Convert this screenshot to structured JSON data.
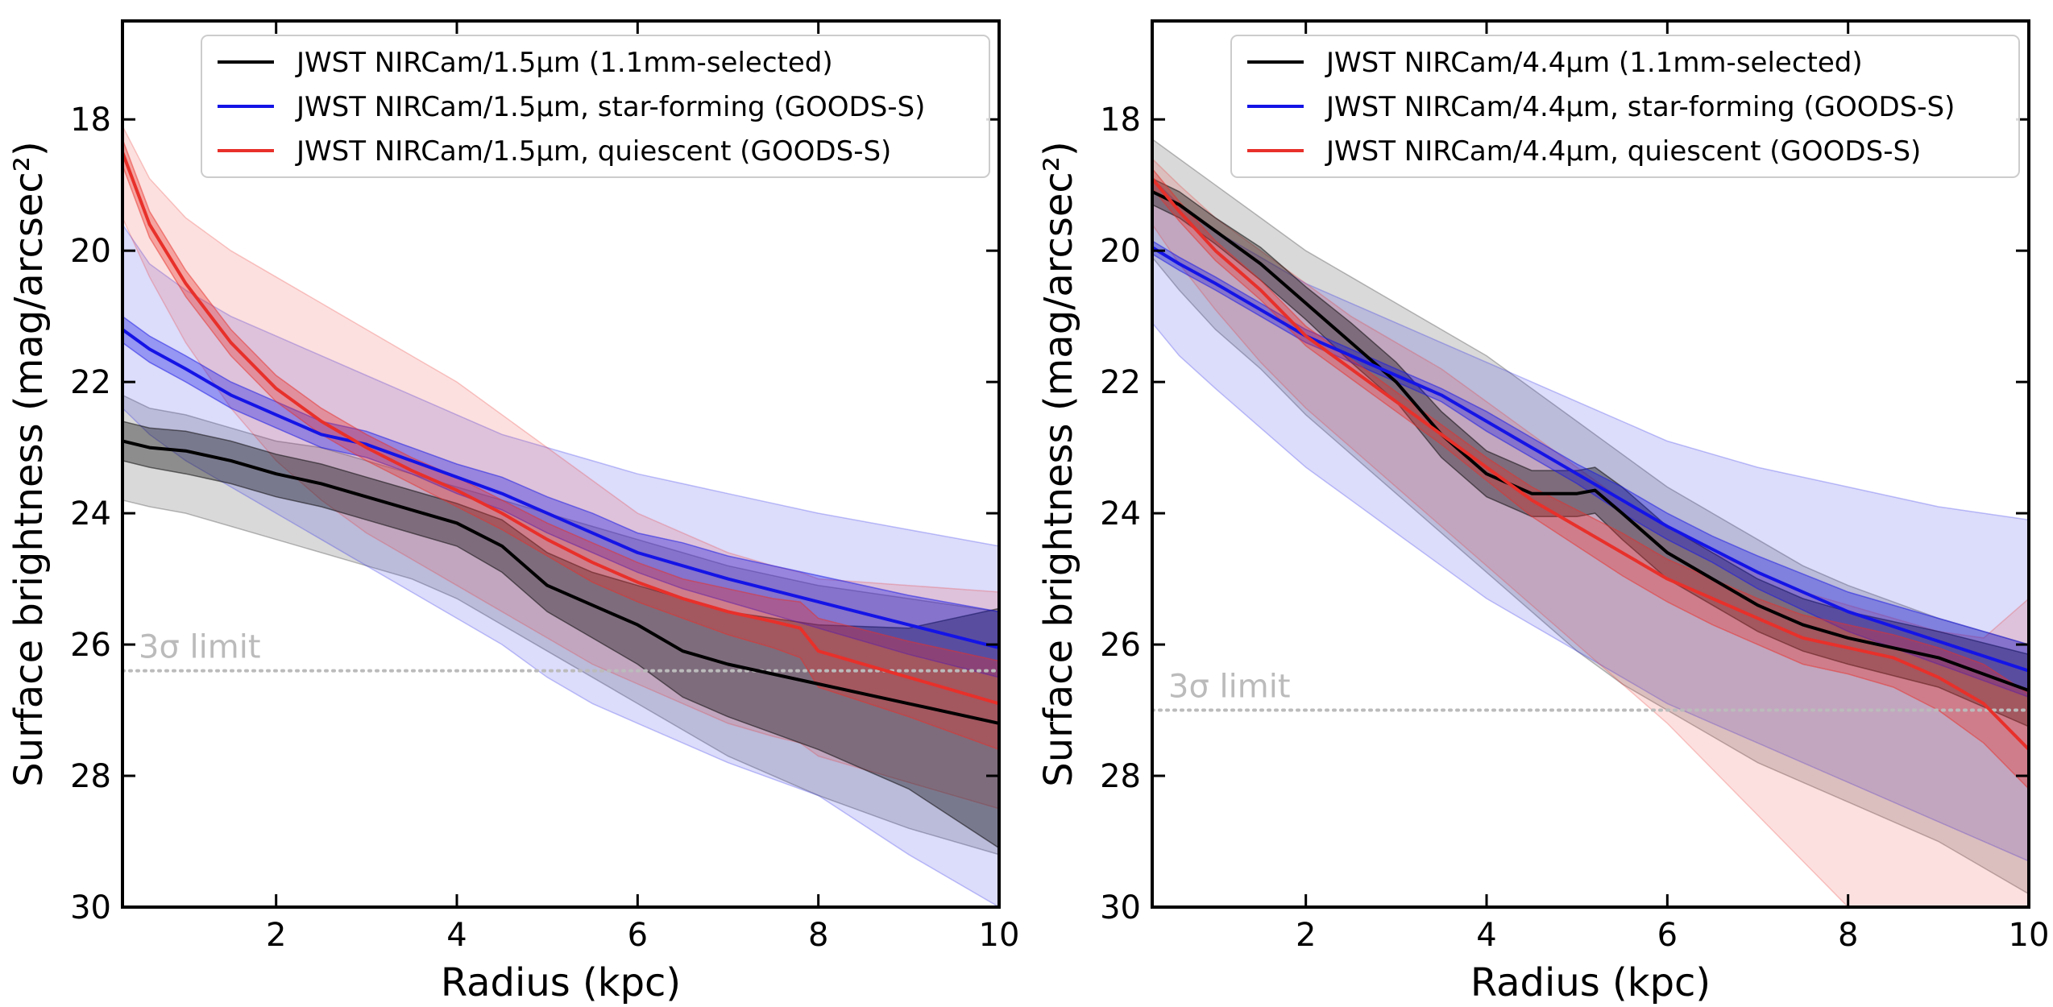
{
  "chart_data": [
    {
      "type": "line",
      "xlabel": "Radius (kpc)",
      "ylabel": "Surface brightness (mag/arcsec²)",
      "xlim": [
        0.3,
        10
      ],
      "ylim": [
        30,
        16.5
      ],
      "xticks": [
        2,
        4,
        6,
        8,
        10
      ],
      "yticks": [
        18,
        20,
        22,
        24,
        26,
        28,
        30
      ],
      "legend_position": "top-right",
      "limit_line": {
        "value": 26.4,
        "label": "3σ limit",
        "color": "#bbbbbb"
      },
      "series": [
        {
          "name": "JWST NIRCam/1.5μm (1.1mm-selected)",
          "color": "#000000",
          "x": [
            0.3,
            0.6,
            1.0,
            1.5,
            2.0,
            2.5,
            3.0,
            3.5,
            4.0,
            4.5,
            5.0,
            5.5,
            6.0,
            6.5,
            7.0,
            8.0,
            9.0,
            10.0
          ],
          "y": [
            22.9,
            23.0,
            23.05,
            23.2,
            23.4,
            23.55,
            23.75,
            23.95,
            24.15,
            24.5,
            25.1,
            25.4,
            25.7,
            26.1,
            26.3,
            26.6,
            26.9,
            27.2
          ],
          "inner_lo": [
            22.6,
            22.7,
            22.75,
            22.9,
            23.1,
            23.25,
            23.45,
            23.65,
            23.85,
            24.1,
            24.6,
            24.9,
            25.1,
            25.3,
            25.5,
            25.7,
            25.75,
            25.45
          ],
          "inner_hi": [
            23.2,
            23.3,
            23.4,
            23.55,
            23.75,
            23.9,
            24.1,
            24.3,
            24.5,
            24.9,
            25.5,
            25.9,
            26.3,
            26.8,
            27.1,
            27.6,
            28.2,
            29.1
          ],
          "outer_lo": [
            22.2,
            22.4,
            22.5,
            22.7,
            22.9,
            23.0,
            23.2,
            23.4,
            23.6,
            23.8,
            24.0,
            24.2,
            24.4,
            24.6,
            24.8,
            25.1,
            25.3,
            25.5
          ],
          "outer_hi": [
            23.8,
            23.9,
            24.0,
            24.2,
            24.4,
            24.6,
            24.8,
            25.0,
            25.3,
            25.7,
            26.1,
            26.5,
            26.9,
            27.3,
            27.7,
            28.3,
            28.8,
            29.2
          ]
        },
        {
          "name": "JWST NIRCam/1.5μm, star-forming (GOODS-S)",
          "color": "#1414e6",
          "x": [
            0.3,
            0.6,
            1.0,
            1.5,
            2.0,
            2.5,
            3.0,
            3.5,
            4.0,
            4.5,
            5.0,
            5.5,
            6.0,
            6.5,
            7.0,
            8.0,
            9.0,
            10.0
          ],
          "y": [
            21.2,
            21.5,
            21.8,
            22.2,
            22.5,
            22.8,
            22.95,
            23.2,
            23.45,
            23.7,
            24.0,
            24.3,
            24.6,
            24.8,
            25.0,
            25.35,
            25.7,
            26.05
          ],
          "inner_lo": [
            21.0,
            21.3,
            21.6,
            22.0,
            22.3,
            22.6,
            22.75,
            23.0,
            23.25,
            23.45,
            23.75,
            24.0,
            24.3,
            24.45,
            24.65,
            24.95,
            25.25,
            25.5
          ],
          "inner_hi": [
            21.4,
            21.7,
            22.0,
            22.4,
            22.7,
            23.0,
            23.15,
            23.4,
            23.7,
            23.95,
            24.3,
            24.6,
            24.9,
            25.15,
            25.35,
            25.75,
            26.15,
            26.5
          ],
          "outer_lo": [
            19.6,
            20.2,
            20.6,
            21.0,
            21.3,
            21.6,
            21.9,
            22.2,
            22.5,
            22.8,
            23.0,
            23.2,
            23.4,
            23.55,
            23.7,
            24.0,
            24.25,
            24.5
          ],
          "outer_hi": [
            22.4,
            22.8,
            23.2,
            23.6,
            24.0,
            24.4,
            24.8,
            25.2,
            25.6,
            26.0,
            26.5,
            26.9,
            27.2,
            27.5,
            27.8,
            28.3,
            29.2,
            30.0
          ]
        },
        {
          "name": "JWST NIRCam/1.5μm, quiescent (GOODS-S)",
          "color": "#e8302a",
          "x": [
            0.3,
            0.6,
            1.0,
            1.5,
            2.0,
            2.5,
            3.0,
            3.5,
            4.0,
            4.5,
            5.0,
            5.5,
            6.0,
            6.5,
            7.0,
            7.5,
            7.8,
            8.0,
            9.0,
            10.0
          ],
          "y": [
            18.5,
            19.6,
            20.5,
            21.4,
            22.1,
            22.6,
            23.0,
            23.35,
            23.65,
            24.0,
            24.4,
            24.75,
            25.05,
            25.3,
            25.5,
            25.65,
            25.75,
            26.1,
            26.5,
            26.9
          ],
          "inner_lo": [
            18.3,
            19.4,
            20.3,
            21.2,
            21.9,
            22.4,
            22.8,
            23.15,
            23.45,
            23.8,
            24.15,
            24.45,
            24.75,
            25.0,
            25.15,
            25.3,
            25.35,
            25.6,
            25.95,
            26.25
          ],
          "inner_hi": [
            18.7,
            19.8,
            20.7,
            21.6,
            22.3,
            22.8,
            23.2,
            23.55,
            23.9,
            24.25,
            24.65,
            25.05,
            25.35,
            25.6,
            25.85,
            26.05,
            26.2,
            26.65,
            27.1,
            27.6
          ],
          "outer_lo": [
            18.1,
            18.9,
            19.5,
            20.0,
            20.4,
            20.8,
            21.2,
            21.6,
            22.0,
            22.5,
            23.0,
            23.5,
            24.0,
            24.3,
            24.6,
            24.8,
            24.9,
            25.0,
            25.1,
            25.2
          ],
          "outer_hi": [
            19.5,
            20.4,
            21.4,
            22.4,
            23.2,
            23.8,
            24.3,
            24.7,
            25.1,
            25.5,
            25.9,
            26.3,
            26.6,
            26.9,
            27.2,
            27.4,
            27.5,
            27.7,
            28.1,
            28.5
          ]
        }
      ]
    },
    {
      "type": "line",
      "xlabel": "Radius (kpc)",
      "ylabel": "Surface brightness (mag/arcsec²)",
      "xlim": [
        0.3,
        10
      ],
      "ylim": [
        30,
        16.5
      ],
      "xticks": [
        2,
        4,
        6,
        8,
        10
      ],
      "yticks": [
        18,
        20,
        22,
        24,
        26,
        28,
        30
      ],
      "legend_position": "top-right",
      "limit_line": {
        "value": 27.0,
        "label": "3σ limit",
        "color": "#bbbbbb"
      },
      "series": [
        {
          "name": "JWST NIRCam/4.4μm (1.1mm-selected)",
          "color": "#000000",
          "x": [
            0.3,
            0.6,
            1.0,
            1.5,
            2.0,
            2.5,
            3.0,
            3.5,
            4.0,
            4.5,
            5.0,
            5.2,
            5.5,
            6.0,
            6.5,
            7.0,
            7.5,
            8.0,
            9.0,
            10.0
          ],
          "y": [
            19.1,
            19.3,
            19.7,
            20.2,
            20.8,
            21.4,
            22.0,
            22.8,
            23.4,
            23.7,
            23.7,
            23.65,
            24.0,
            24.6,
            25.0,
            25.4,
            25.7,
            25.9,
            26.2,
            26.7
          ],
          "inner_lo": [
            18.9,
            19.1,
            19.5,
            19.95,
            20.55,
            21.1,
            21.7,
            22.45,
            23.05,
            23.35,
            23.35,
            23.3,
            23.6,
            24.2,
            24.6,
            25.0,
            25.3,
            25.5,
            25.8,
            26.15
          ],
          "inner_hi": [
            19.3,
            19.5,
            19.9,
            20.45,
            21.05,
            21.7,
            22.3,
            23.15,
            23.75,
            24.05,
            24.05,
            24.0,
            24.4,
            25.0,
            25.4,
            25.8,
            26.1,
            26.3,
            26.65,
            27.25
          ],
          "outer_lo": [
            18.3,
            18.6,
            19.0,
            19.5,
            20.0,
            20.4,
            20.8,
            21.2,
            21.6,
            22.1,
            22.6,
            22.8,
            23.1,
            23.6,
            24.0,
            24.4,
            24.8,
            25.1,
            25.6,
            26.0
          ],
          "outer_hi": [
            20.1,
            20.6,
            21.2,
            21.8,
            22.5,
            23.1,
            23.7,
            24.3,
            24.9,
            25.5,
            26.1,
            26.3,
            26.6,
            27.0,
            27.4,
            27.8,
            28.1,
            28.4,
            29.0,
            29.8
          ]
        },
        {
          "name": "JWST NIRCam/4.4μm, star-forming (GOODS-S)",
          "color": "#1414e6",
          "x": [
            0.3,
            0.6,
            1.0,
            1.5,
            2.0,
            2.5,
            3.0,
            3.5,
            4.0,
            4.5,
            5.0,
            5.5,
            6.0,
            6.5,
            7.0,
            8.0,
            9.0,
            10.0
          ],
          "y": [
            19.95,
            20.2,
            20.5,
            20.9,
            21.3,
            21.6,
            21.9,
            22.2,
            22.6,
            23.0,
            23.4,
            23.8,
            24.2,
            24.55,
            24.9,
            25.5,
            25.95,
            26.4
          ],
          "inner_lo": [
            19.85,
            20.1,
            20.4,
            20.8,
            21.2,
            21.5,
            21.8,
            22.1,
            22.45,
            22.85,
            23.25,
            23.6,
            24.0,
            24.35,
            24.65,
            25.2,
            25.6,
            26.0
          ],
          "inner_hi": [
            20.05,
            20.3,
            20.6,
            21.0,
            21.4,
            21.7,
            22.0,
            22.3,
            22.75,
            23.15,
            23.55,
            24.0,
            24.4,
            24.75,
            25.15,
            25.8,
            26.3,
            26.8
          ],
          "outer_lo": [
            18.9,
            19.3,
            19.7,
            20.1,
            20.5,
            20.8,
            21.1,
            21.4,
            21.7,
            22.0,
            22.3,
            22.6,
            22.9,
            23.1,
            23.3,
            23.6,
            23.9,
            24.1
          ],
          "outer_hi": [
            21.1,
            21.6,
            22.1,
            22.7,
            23.3,
            23.8,
            24.3,
            24.8,
            25.3,
            25.7,
            26.1,
            26.5,
            26.9,
            27.2,
            27.5,
            28.1,
            28.7,
            29.3
          ]
        },
        {
          "name": "JWST NIRCam/4.4μm, quiescent (GOODS-S)",
          "color": "#e8302a",
          "x": [
            0.3,
            0.6,
            1.0,
            1.5,
            2.0,
            2.5,
            3.0,
            3.5,
            4.0,
            4.5,
            5.0,
            5.5,
            6.0,
            6.5,
            7.0,
            7.5,
            8.0,
            8.5,
            9.0,
            9.5,
            10.0
          ],
          "y": [
            18.9,
            19.4,
            20.0,
            20.6,
            21.3,
            21.8,
            22.3,
            22.8,
            23.3,
            23.8,
            24.2,
            24.6,
            25.0,
            25.3,
            25.6,
            25.9,
            26.05,
            26.2,
            26.5,
            26.9,
            27.6
          ],
          "inner_lo": [
            18.75,
            19.25,
            19.85,
            20.45,
            21.15,
            21.65,
            22.15,
            22.65,
            23.15,
            23.6,
            23.95,
            24.3,
            24.7,
            25.0,
            25.3,
            25.55,
            25.7,
            25.85,
            26.05,
            26.3,
            26.75
          ],
          "inner_hi": [
            19.05,
            19.55,
            20.15,
            20.75,
            21.45,
            21.95,
            22.45,
            22.95,
            23.5,
            24.05,
            24.5,
            24.95,
            25.35,
            25.7,
            26.0,
            26.3,
            26.45,
            26.65,
            27.0,
            27.5,
            28.2
          ],
          "outer_lo": [
            18.6,
            19.0,
            19.5,
            20.0,
            20.5,
            21.0,
            21.4,
            21.8,
            22.3,
            22.8,
            23.3,
            23.8,
            24.2,
            24.6,
            24.9,
            25.2,
            25.4,
            25.6,
            25.8,
            25.9,
            25.3
          ],
          "outer_hi": [
            19.6,
            20.2,
            20.9,
            21.7,
            22.4,
            23.0,
            23.6,
            24.2,
            24.8,
            25.4,
            26.0,
            26.6,
            27.2,
            27.9,
            28.6,
            29.3,
            30.0,
            30.0,
            30.0,
            30.0,
            30.0
          ]
        }
      ]
    }
  ]
}
